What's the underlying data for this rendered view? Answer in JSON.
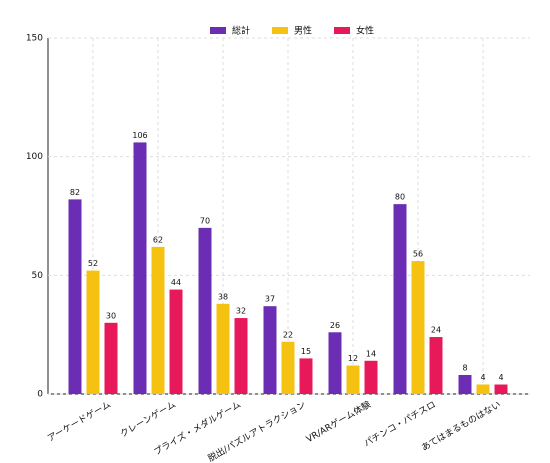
{
  "chart_data": {
    "type": "bar",
    "categories": [
      "アーケードゲーム",
      "クレーンゲーム",
      "プライズ・メダルゲーム",
      "脱出/パズルアトラクション",
      "VR/ARゲーム体験",
      "パチンコ・パチスロ",
      "あてはまるものはない"
    ],
    "series": [
      {
        "name": "総計",
        "color": "#6a2db3",
        "values": [
          82,
          106,
          70,
          37,
          26,
          80,
          8
        ]
      },
      {
        "name": "男性",
        "color": "#f5c211",
        "values": [
          52,
          62,
          38,
          22,
          12,
          56,
          4
        ]
      },
      {
        "name": "女性",
        "color": "#e8195a",
        "values": [
          30,
          44,
          32,
          15,
          14,
          24,
          4
        ]
      }
    ],
    "ylim": [
      0,
      150
    ],
    "yticks": [
      0,
      50,
      100,
      150
    ],
    "grid": true,
    "legend": "top"
  }
}
